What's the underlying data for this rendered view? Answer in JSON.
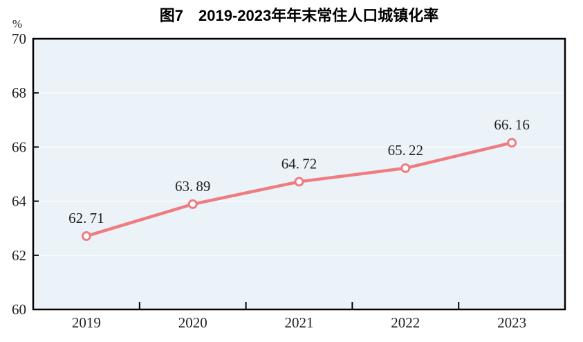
{
  "chart_data": {
    "type": "line",
    "title": "图7　2019-2023年年末常住人口城镇化率",
    "unit_label": "%",
    "xlabel": "",
    "ylabel": "%",
    "categories": [
      "2019",
      "2020",
      "2021",
      "2022",
      "2023"
    ],
    "series_name": "年末常住人口城镇化率",
    "values": [
      62.71,
      63.89,
      64.72,
      65.22,
      66.16
    ],
    "point_labels": [
      "62.71",
      "63.89",
      "64.72",
      "65.22",
      "66.16"
    ],
    "ylim": [
      60,
      70
    ],
    "ytick_step": 2,
    "yticks": [
      60,
      62,
      64,
      66,
      68,
      70
    ],
    "grid": true,
    "legend": "none",
    "colors": {
      "line": "#ee7d82",
      "marker_fill": "#ffffff",
      "plot_bg": "#ecf3f8",
      "gridline": "#fafdfe",
      "axis": "#000000",
      "text": "#1f1f1f"
    }
  }
}
